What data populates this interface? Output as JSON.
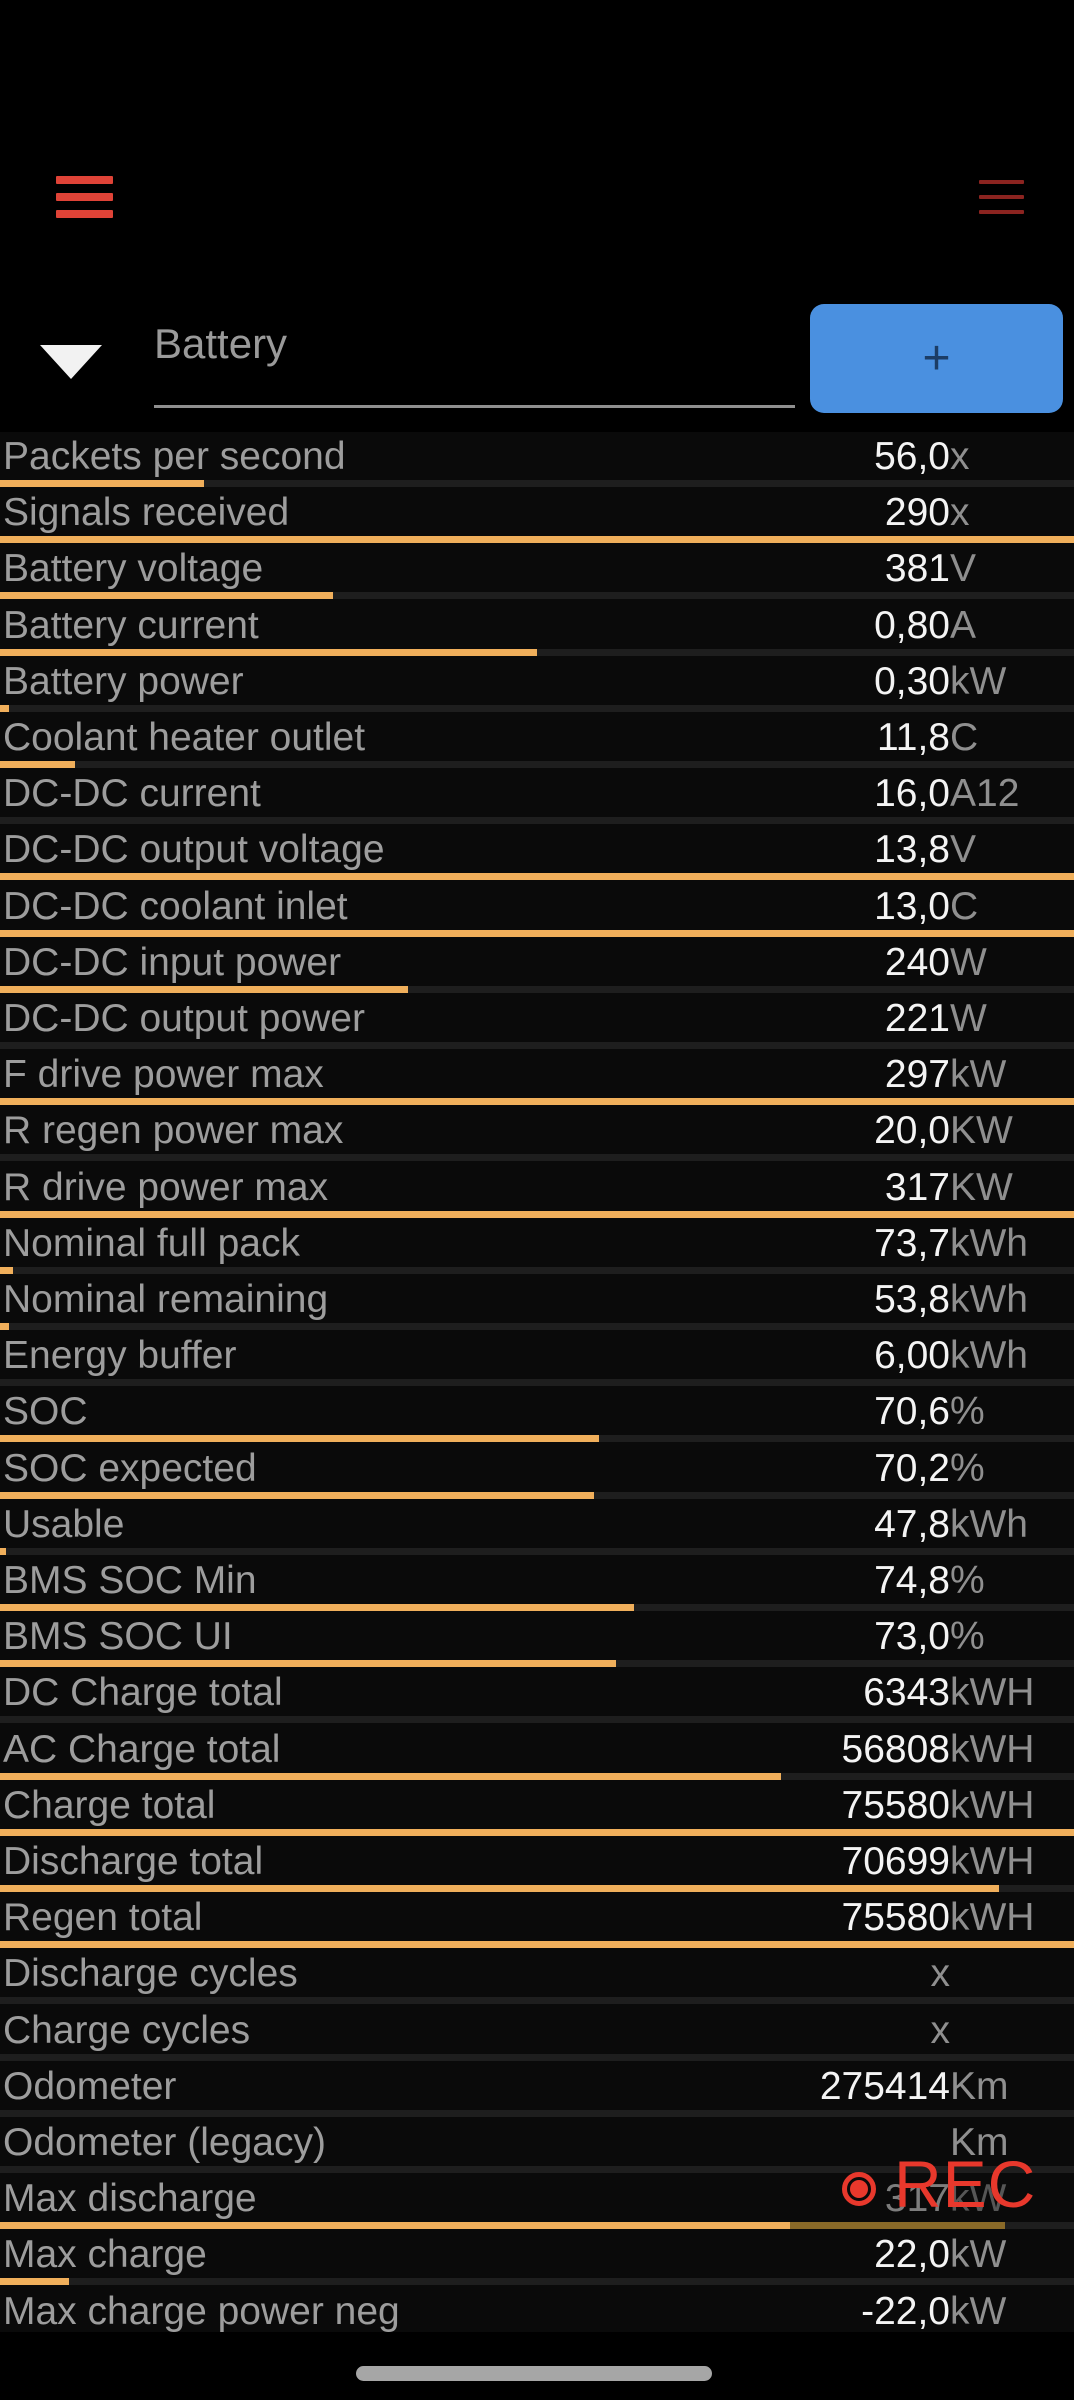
{
  "header": {
    "dropdown": {
      "selected": "Battery"
    },
    "add_button": {
      "label": "+"
    }
  },
  "rec": {
    "label": "REC"
  },
  "colors": {
    "background": "#000000",
    "bar_fill": "#f0af5b",
    "bar_fill_dim": "#8a6a28",
    "bar_track": "#1e1e1e",
    "label_gray": "#9d9d9d",
    "value_white": "#f4f4f4",
    "unit_gray": "#8f8f8f",
    "menu_left_red": "#df4337",
    "menu_right_red": "#8c2420",
    "add_button_blue": "#4a90e0",
    "rec_red": "#e8382c"
  },
  "table": {
    "rows": [
      {
        "label": "Packets per second",
        "value": "56,0",
        "unit": "x",
        "bar": 0.19
      },
      {
        "label": "Signals received",
        "value": "290",
        "unit": "x",
        "bar": 1
      },
      {
        "label": "Battery voltage",
        "value": "381",
        "unit": "V",
        "bar": 0.31
      },
      {
        "label": "Battery current",
        "value": "0,80",
        "unit": "A",
        "bar": 0.5
      },
      {
        "label": "Battery power",
        "value": "0,30",
        "unit": "kW",
        "bar": 0.008
      },
      {
        "label": "Coolant heater outlet",
        "value": "11,8",
        "unit": "C",
        "bar": 0.07
      },
      {
        "label": "DC-DC current",
        "value": "16,0",
        "unit": "A12",
        "bar": 0
      },
      {
        "label": "DC-DC output voltage",
        "value": "13,8",
        "unit": "V",
        "bar": 1
      },
      {
        "label": "DC-DC coolant inlet",
        "value": "13,0",
        "unit": "C",
        "bar": 1
      },
      {
        "label": "DC-DC input power",
        "value": "240",
        "unit": "W",
        "bar": 0.38
      },
      {
        "label": "DC-DC output power",
        "value": "221",
        "unit": "W",
        "bar": 0
      },
      {
        "label": "F drive power max",
        "value": "297",
        "unit": "kW",
        "bar": 1
      },
      {
        "label": "R regen power max",
        "value": "20,0",
        "unit": "KW",
        "bar": 0
      },
      {
        "label": "R drive power max",
        "value": "317",
        "unit": "KW",
        "bar": 1
      },
      {
        "label": "Nominal full pack",
        "value": "73,7",
        "unit": "kWh",
        "bar": 0.012
      },
      {
        "label": "Nominal remaining",
        "value": "53,8",
        "unit": "kWh",
        "bar": 0.008
      },
      {
        "label": "Energy buffer",
        "value": "6,00",
        "unit": "kWh",
        "bar": 0
      },
      {
        "label": "SOC",
        "value": "70,6",
        "unit": "%",
        "bar": 0.558
      },
      {
        "label": "SOC expected",
        "value": "70,2",
        "unit": "%",
        "bar": 0.553
      },
      {
        "label": "Usable",
        "value": "47,8",
        "unit": "kWh",
        "bar": 0.006
      },
      {
        "label": "BMS SOC Min",
        "value": "74,8",
        "unit": "%",
        "bar": 0.59
      },
      {
        "label": "BMS SOC UI",
        "value": "73,0",
        "unit": "%",
        "bar": 0.574
      },
      {
        "label": "DC Charge total",
        "value": "6343",
        "unit": "kWH",
        "bar": 0
      },
      {
        "label": "AC Charge total",
        "value": "56808",
        "unit": "kWH",
        "bar": 0.727
      },
      {
        "label": "Charge total",
        "value": "75580",
        "unit": "kWH",
        "bar": 1
      },
      {
        "label": "Discharge total",
        "value": "70699",
        "unit": "kWH",
        "bar": 0.93
      },
      {
        "label": "Regen total",
        "value": "75580",
        "unit": "kWH",
        "bar": 1
      },
      {
        "label": "Discharge cycles",
        "value": "x",
        "unit": "",
        "bar": 0,
        "num_color": "#8f8f8f"
      },
      {
        "label": "Charge cycles",
        "value": "x",
        "unit": "",
        "bar": 0,
        "num_color": "#8f8f8f"
      },
      {
        "label": "Odometer",
        "value": "275414",
        "unit": "Km",
        "bar": 0
      },
      {
        "label": "Odometer (legacy)",
        "value": "",
        "unit": "Km",
        "bar": 0
      },
      {
        "label": "Max discharge",
        "value": "317",
        "unit": "kW",
        "bar": 0.736,
        "bar_dim": 0.2,
        "num_color": "#7d7d7d",
        "unit_color": "#565656"
      },
      {
        "label": "Max charge",
        "value": "22,0",
        "unit": "kW",
        "bar": 0.064
      },
      {
        "label": "Max charge power neg",
        "value": "-22,0",
        "unit": "kW",
        "bar": 0
      }
    ]
  }
}
